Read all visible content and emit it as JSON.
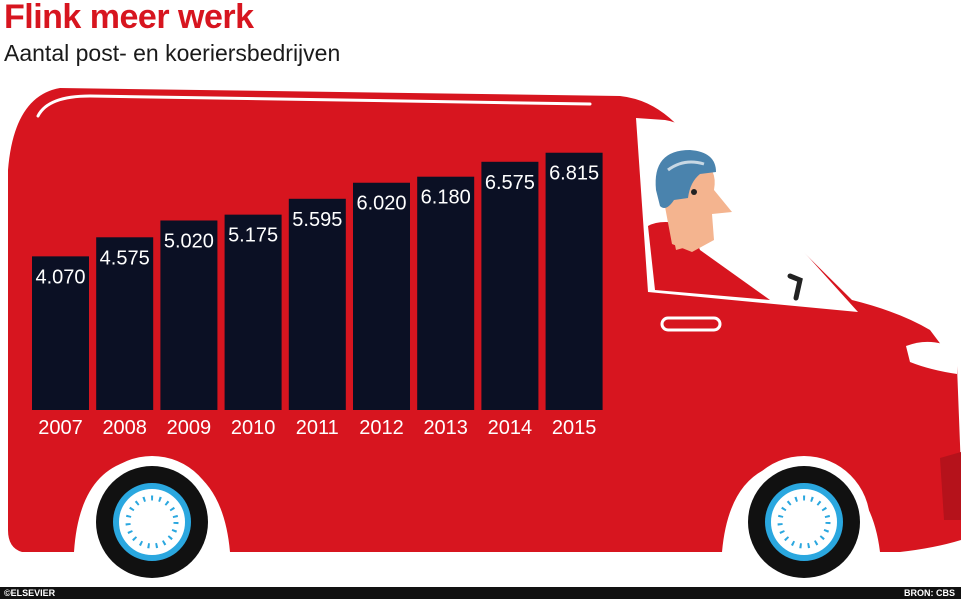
{
  "header": {
    "title": "Flink meer werk",
    "subtitle": "Aantal post- en koeriersbedrijven"
  },
  "footer": {
    "credit": "©ELSEVIER",
    "source": "BRON: CBS"
  },
  "colors": {
    "accent": "#d7151f",
    "bar": "#0b1024",
    "bar_label": "#ffffff",
    "window": "#ffffff",
    "wheel_rim": "#2aa7df"
  },
  "illustration": {
    "vehicle": "red-delivery-van",
    "driver": "driver-icon"
  },
  "chart_data": {
    "type": "bar",
    "categories": [
      "2007",
      "2008",
      "2009",
      "2010",
      "2011",
      "2012",
      "2013",
      "2014",
      "2015"
    ],
    "values": [
      4070,
      4575,
      5020,
      5175,
      5595,
      6020,
      6180,
      6575,
      6815
    ],
    "value_labels": [
      "4.070",
      "4.575",
      "5.020",
      "5.175",
      "5.595",
      "6.020",
      "6.180",
      "6.575",
      "6.815"
    ],
    "title": "Flink meer werk",
    "subtitle": "Aantal post- en koeriersbedrijven",
    "xlabel": "",
    "ylabel": "",
    "grid": false,
    "legend": "none"
  }
}
